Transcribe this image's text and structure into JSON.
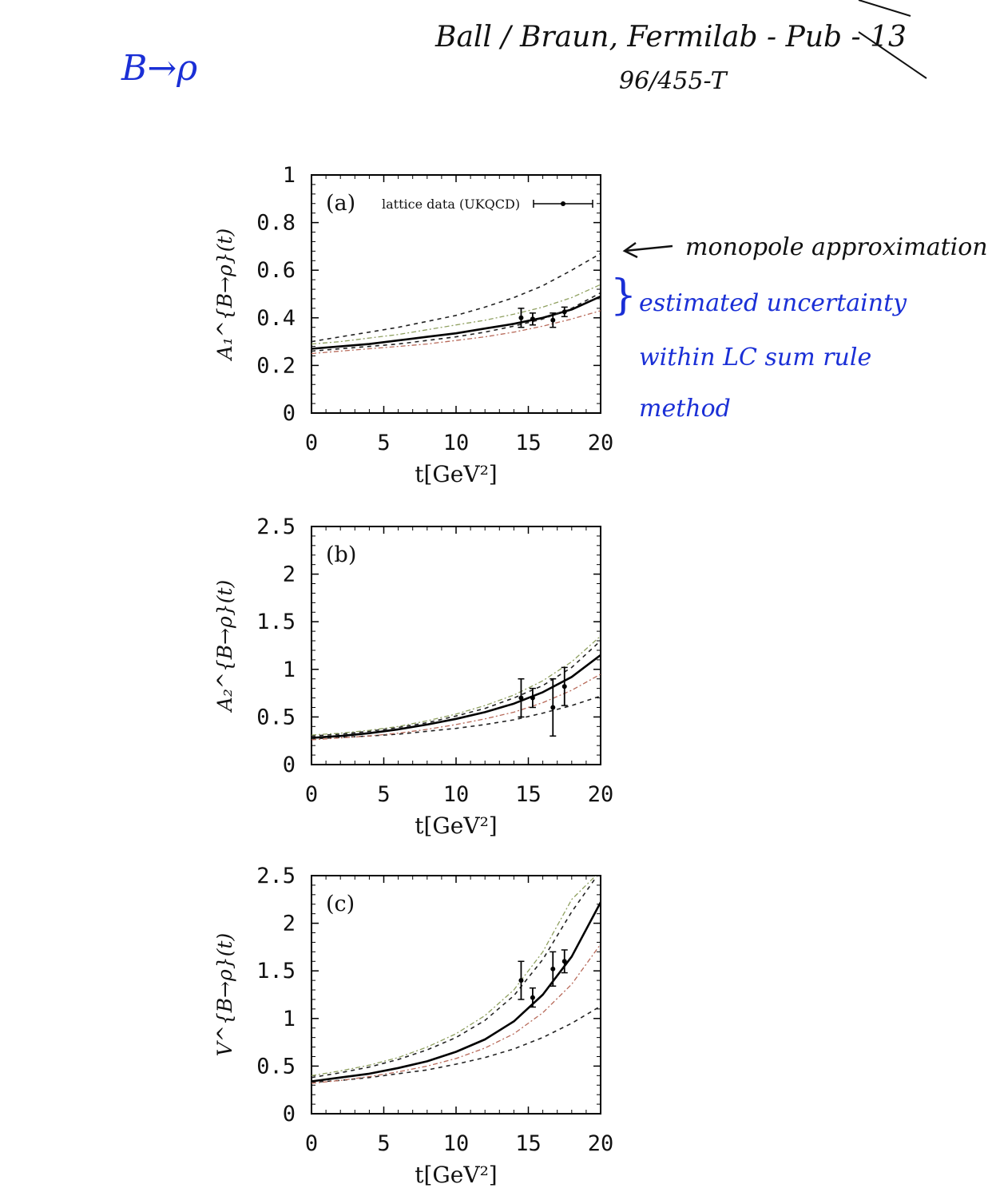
{
  "annotations": {
    "topic": "B→ρ",
    "reference_line1": "Ball / Braun, Fermilab - Pub - 13",
    "reference_line2": "96/455-T",
    "monopole_note": "monopole approximation",
    "uncertainty_note_1": "estimated uncertainty",
    "uncertainty_note_2": "within LC sum rule",
    "uncertainty_note_3": "method"
  },
  "colors": {
    "ink_blue": "#1a2fd6",
    "ink_black": "#111111",
    "band_green": "#8fa060",
    "band_red": "#b86a5a"
  },
  "chart_data": [
    {
      "type": "line",
      "panel_label": "(a)",
      "legend": "lattice data (UKQCD)",
      "xlabel": "t[GeV²]",
      "ylabel": "A₁^{B→ρ}(t)",
      "xlim": [
        0,
        20
      ],
      "ylim": [
        0,
        1
      ],
      "xticks": [
        "0",
        "5",
        "10",
        "15",
        "20"
      ],
      "yticks": [
        "0",
        "0.2",
        "0.4",
        "0.6",
        "0.8",
        "1"
      ],
      "x": [
        0,
        2,
        4,
        6,
        8,
        10,
        12,
        14,
        16,
        18,
        20
      ],
      "series": [
        {
          "role": "central",
          "values": [
            0.27,
            0.28,
            0.29,
            0.305,
            0.32,
            0.335,
            0.355,
            0.375,
            0.4,
            0.435,
            0.49
          ]
        },
        {
          "role": "monopole-upper",
          "values": [
            0.3,
            0.32,
            0.34,
            0.36,
            0.385,
            0.41,
            0.445,
            0.485,
            0.535,
            0.6,
            0.67
          ]
        },
        {
          "role": "monopole-lower",
          "values": [
            0.26,
            0.27,
            0.28,
            0.29,
            0.305,
            0.32,
            0.34,
            0.365,
            0.395,
            0.44,
            0.505
          ]
        },
        {
          "role": "uncertainty-upper",
          "values": [
            0.29,
            0.3,
            0.315,
            0.33,
            0.35,
            0.37,
            0.39,
            0.415,
            0.445,
            0.485,
            0.54
          ]
        },
        {
          "role": "uncertainty-lower",
          "values": [
            0.25,
            0.26,
            0.27,
            0.28,
            0.29,
            0.305,
            0.32,
            0.34,
            0.365,
            0.395,
            0.43
          ]
        }
      ],
      "lattice_points": [
        {
          "x": 14.5,
          "y": 0.4,
          "err": 0.04
        },
        {
          "x": 15.3,
          "y": 0.395,
          "err": 0.025
        },
        {
          "x": 16.7,
          "y": 0.39,
          "err": 0.03
        },
        {
          "x": 17.5,
          "y": 0.425,
          "err": 0.02
        }
      ]
    },
    {
      "type": "line",
      "panel_label": "(b)",
      "xlabel": "t[GeV²]",
      "ylabel": "A₂^{B→ρ}(t)",
      "xlim": [
        0,
        20
      ],
      "ylim": [
        0,
        2.5
      ],
      "xticks": [
        "0",
        "5",
        "10",
        "15",
        "20"
      ],
      "yticks": [
        "0",
        "0.5",
        "1",
        "1.5",
        "2",
        "2.5"
      ],
      "x": [
        0,
        2,
        4,
        6,
        8,
        10,
        12,
        14,
        16,
        18,
        20
      ],
      "series": [
        {
          "role": "central",
          "values": [
            0.28,
            0.3,
            0.33,
            0.37,
            0.42,
            0.48,
            0.55,
            0.64,
            0.76,
            0.92,
            1.15
          ]
        },
        {
          "role": "monopole-upper",
          "values": [
            0.3,
            0.32,
            0.35,
            0.39,
            0.44,
            0.51,
            0.59,
            0.7,
            0.83,
            1.02,
            1.3
          ]
        },
        {
          "role": "monopole-lower",
          "values": [
            0.27,
            0.285,
            0.3,
            0.32,
            0.35,
            0.38,
            0.42,
            0.47,
            0.54,
            0.62,
            0.72
          ]
        },
        {
          "role": "uncertainty-upper",
          "values": [
            0.31,
            0.33,
            0.36,
            0.4,
            0.46,
            0.53,
            0.62,
            0.73,
            0.88,
            1.08,
            1.35
          ]
        },
        {
          "role": "uncertainty-lower",
          "values": [
            0.26,
            0.28,
            0.3,
            0.33,
            0.37,
            0.42,
            0.48,
            0.55,
            0.65,
            0.78,
            0.95
          ]
        }
      ],
      "lattice_points": [
        {
          "x": 14.5,
          "y": 0.7,
          "err": 0.2
        },
        {
          "x": 15.3,
          "y": 0.7,
          "err": 0.1
        },
        {
          "x": 16.7,
          "y": 0.6,
          "err": 0.3
        },
        {
          "x": 17.5,
          "y": 0.82,
          "err": 0.2
        }
      ]
    },
    {
      "type": "line",
      "panel_label": "(c)",
      "xlabel": "t[GeV²]",
      "ylabel": "V^{B→ρ}(t)",
      "xlim": [
        0,
        20
      ],
      "ylim": [
        0,
        2.5
      ],
      "xticks": [
        "0",
        "5",
        "10",
        "15",
        "20"
      ],
      "yticks": [
        "0",
        "0.5",
        "1",
        "1.5",
        "2",
        "2.5"
      ],
      "x": [
        0,
        2,
        4,
        6,
        8,
        10,
        12,
        14,
        16,
        18,
        20
      ],
      "series": [
        {
          "role": "central",
          "values": [
            0.34,
            0.38,
            0.42,
            0.48,
            0.55,
            0.65,
            0.78,
            0.97,
            1.25,
            1.65,
            2.22
          ]
        },
        {
          "role": "monopole-upper",
          "values": [
            0.38,
            0.43,
            0.49,
            0.57,
            0.67,
            0.8,
            0.98,
            1.24,
            1.62,
            2.12,
            2.55
          ]
        },
        {
          "role": "monopole-lower",
          "values": [
            0.33,
            0.35,
            0.38,
            0.42,
            0.46,
            0.52,
            0.59,
            0.68,
            0.8,
            0.95,
            1.13
          ]
        },
        {
          "role": "uncertainty-upper",
          "values": [
            0.4,
            0.45,
            0.51,
            0.59,
            0.7,
            0.84,
            1.03,
            1.3,
            1.7,
            2.25,
            2.55
          ]
        },
        {
          "role": "uncertainty-lower",
          "values": [
            0.32,
            0.35,
            0.39,
            0.44,
            0.5,
            0.58,
            0.69,
            0.84,
            1.06,
            1.36,
            1.78
          ]
        }
      ],
      "lattice_points": [
        {
          "x": 14.5,
          "y": 1.4,
          "err": 0.2
        },
        {
          "x": 15.3,
          "y": 1.22,
          "err": 0.1
        },
        {
          "x": 16.7,
          "y": 1.52,
          "err": 0.18
        },
        {
          "x": 17.5,
          "y": 1.6,
          "err": 0.12
        }
      ]
    }
  ]
}
